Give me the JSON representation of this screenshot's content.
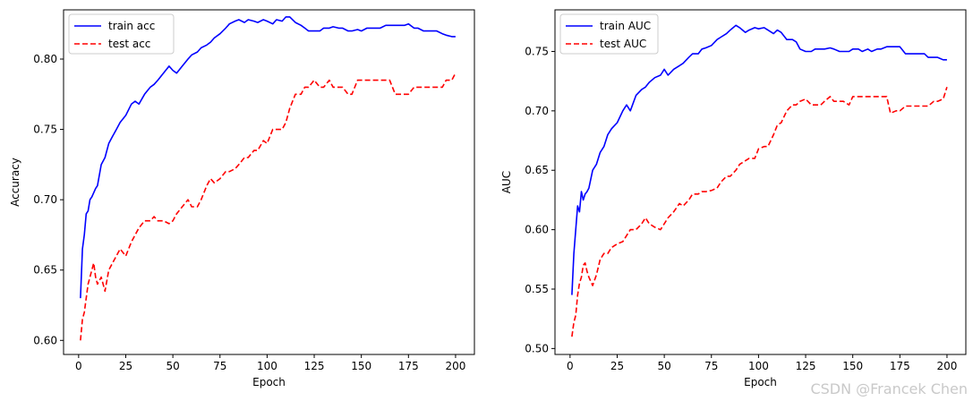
{
  "chart_data": [
    {
      "type": "line",
      "title": "",
      "xlabel": "Epoch",
      "ylabel": "Accuracy",
      "xlim": [
        -8,
        210
      ],
      "ylim": [
        0.59,
        0.835
      ],
      "xticks": [
        0,
        25,
        50,
        75,
        100,
        125,
        150,
        175,
        200
      ],
      "yticks": [
        0.6,
        0.65,
        0.7,
        0.75,
        0.8
      ],
      "legend": "top-left",
      "grid": false,
      "series": [
        {
          "name": "train acc",
          "color": "#0000ff",
          "style": "solid",
          "x": [
            1,
            2,
            3,
            4,
            5,
            6,
            7,
            8,
            9,
            10,
            12,
            14,
            16,
            18,
            20,
            22,
            25,
            28,
            30,
            32,
            35,
            38,
            40,
            42,
            45,
            48,
            50,
            52,
            55,
            58,
            60,
            63,
            65,
            68,
            70,
            72,
            75,
            78,
            80,
            83,
            85,
            88,
            90,
            93,
            95,
            98,
            100,
            103,
            105,
            108,
            110,
            112,
            115,
            118,
            120,
            122,
            125,
            128,
            130,
            133,
            135,
            138,
            140,
            143,
            145,
            148,
            150,
            153,
            155,
            158,
            160,
            163,
            165,
            168,
            170,
            173,
            175,
            178,
            180,
            183,
            185,
            188,
            190,
            193,
            195,
            198,
            200
          ],
          "y": [
            0.63,
            0.665,
            0.675,
            0.69,
            0.692,
            0.7,
            0.702,
            0.705,
            0.708,
            0.71,
            0.725,
            0.73,
            0.74,
            0.745,
            0.75,
            0.755,
            0.76,
            0.768,
            0.77,
            0.768,
            0.775,
            0.78,
            0.782,
            0.785,
            0.79,
            0.795,
            0.792,
            0.79,
            0.795,
            0.8,
            0.803,
            0.805,
            0.808,
            0.81,
            0.812,
            0.815,
            0.818,
            0.822,
            0.825,
            0.827,
            0.828,
            0.826,
            0.828,
            0.827,
            0.826,
            0.828,
            0.827,
            0.825,
            0.828,
            0.827,
            0.83,
            0.83,
            0.826,
            0.824,
            0.822,
            0.82,
            0.82,
            0.82,
            0.822,
            0.822,
            0.823,
            0.822,
            0.822,
            0.82,
            0.82,
            0.821,
            0.82,
            0.822,
            0.822,
            0.822,
            0.822,
            0.824,
            0.824,
            0.824,
            0.824,
            0.824,
            0.825,
            0.822,
            0.822,
            0.82,
            0.82,
            0.82,
            0.82,
            0.818,
            0.817,
            0.816,
            0.816
          ]
        },
        {
          "name": "test acc",
          "color": "#ff0000",
          "style": "dashed",
          "x": [
            1,
            2,
            3,
            4,
            5,
            6,
            7,
            8,
            9,
            10,
            12,
            14,
            16,
            18,
            20,
            22,
            25,
            28,
            30,
            32,
            35,
            38,
            40,
            42,
            45,
            48,
            50,
            52,
            55,
            58,
            60,
            63,
            65,
            68,
            70,
            72,
            75,
            78,
            80,
            83,
            85,
            88,
            90,
            93,
            95,
            98,
            100,
            103,
            105,
            108,
            110,
            112,
            115,
            118,
            120,
            122,
            125,
            128,
            130,
            133,
            135,
            138,
            140,
            143,
            145,
            148,
            150,
            153,
            155,
            158,
            160,
            163,
            165,
            168,
            170,
            173,
            175,
            178,
            180,
            183,
            185,
            188,
            190,
            193,
            195,
            198,
            200
          ],
          "y": [
            0.6,
            0.615,
            0.62,
            0.63,
            0.64,
            0.645,
            0.65,
            0.655,
            0.645,
            0.64,
            0.645,
            0.635,
            0.65,
            0.655,
            0.66,
            0.665,
            0.66,
            0.67,
            0.675,
            0.68,
            0.685,
            0.685,
            0.688,
            0.685,
            0.685,
            0.683,
            0.685,
            0.69,
            0.695,
            0.7,
            0.695,
            0.695,
            0.7,
            0.71,
            0.715,
            0.712,
            0.715,
            0.72,
            0.72,
            0.722,
            0.725,
            0.73,
            0.73,
            0.735,
            0.735,
            0.742,
            0.74,
            0.75,
            0.75,
            0.75,
            0.755,
            0.765,
            0.775,
            0.775,
            0.78,
            0.78,
            0.785,
            0.78,
            0.78,
            0.785,
            0.78,
            0.78,
            0.78,
            0.775,
            0.775,
            0.785,
            0.785,
            0.785,
            0.785,
            0.785,
            0.785,
            0.785,
            0.785,
            0.775,
            0.775,
            0.775,
            0.775,
            0.78,
            0.78,
            0.78,
            0.78,
            0.78,
            0.78,
            0.78,
            0.785,
            0.785,
            0.79
          ]
        }
      ]
    },
    {
      "type": "line",
      "title": "",
      "xlabel": "Epoch",
      "ylabel": "AUC",
      "xlim": [
        -8,
        210
      ],
      "ylim": [
        0.495,
        0.785
      ],
      "xticks": [
        0,
        25,
        50,
        75,
        100,
        125,
        150,
        175,
        200
      ],
      "yticks": [
        0.5,
        0.55,
        0.6,
        0.65,
        0.7,
        0.75
      ],
      "legend": "top-left",
      "grid": false,
      "series": [
        {
          "name": "train AUC",
          "color": "#0000ff",
          "style": "solid",
          "x": [
            1,
            2,
            3,
            4,
            5,
            6,
            7,
            8,
            9,
            10,
            12,
            14,
            16,
            18,
            20,
            22,
            25,
            28,
            30,
            32,
            35,
            38,
            40,
            42,
            45,
            48,
            50,
            52,
            55,
            58,
            60,
            63,
            65,
            68,
            70,
            72,
            75,
            78,
            80,
            83,
            85,
            88,
            90,
            93,
            95,
            98,
            100,
            103,
            105,
            108,
            110,
            112,
            115,
            118,
            120,
            122,
            125,
            128,
            130,
            133,
            135,
            138,
            140,
            143,
            145,
            148,
            150,
            153,
            155,
            158,
            160,
            163,
            165,
            168,
            170,
            173,
            175,
            178,
            180,
            183,
            185,
            188,
            190,
            193,
            195,
            198,
            200
          ],
          "y": [
            0.545,
            0.58,
            0.6,
            0.62,
            0.615,
            0.632,
            0.625,
            0.63,
            0.632,
            0.635,
            0.65,
            0.655,
            0.665,
            0.67,
            0.68,
            0.685,
            0.69,
            0.7,
            0.705,
            0.7,
            0.713,
            0.718,
            0.72,
            0.724,
            0.728,
            0.73,
            0.735,
            0.73,
            0.735,
            0.738,
            0.74,
            0.745,
            0.748,
            0.748,
            0.752,
            0.753,
            0.755,
            0.76,
            0.762,
            0.765,
            0.768,
            0.772,
            0.77,
            0.766,
            0.768,
            0.77,
            0.769,
            0.77,
            0.768,
            0.765,
            0.768,
            0.766,
            0.76,
            0.76,
            0.758,
            0.752,
            0.75,
            0.75,
            0.752,
            0.752,
            0.752,
            0.753,
            0.752,
            0.75,
            0.75,
            0.75,
            0.752,
            0.752,
            0.75,
            0.752,
            0.75,
            0.752,
            0.752,
            0.754,
            0.754,
            0.754,
            0.754,
            0.748,
            0.748,
            0.748,
            0.748,
            0.748,
            0.745,
            0.745,
            0.745,
            0.743,
            0.743
          ]
        },
        {
          "name": "test AUC",
          "color": "#ff0000",
          "style": "dashed",
          "x": [
            1,
            2,
            3,
            4,
            5,
            6,
            7,
            8,
            9,
            10,
            12,
            14,
            16,
            18,
            20,
            22,
            25,
            28,
            30,
            32,
            35,
            38,
            40,
            42,
            45,
            48,
            50,
            52,
            55,
            58,
            60,
            63,
            65,
            68,
            70,
            72,
            75,
            78,
            80,
            83,
            85,
            88,
            90,
            93,
            95,
            98,
            100,
            103,
            105,
            108,
            110,
            112,
            115,
            118,
            120,
            122,
            125,
            128,
            130,
            133,
            135,
            138,
            140,
            143,
            145,
            148,
            150,
            153,
            155,
            158,
            160,
            163,
            165,
            168,
            170,
            173,
            175,
            178,
            180,
            183,
            185,
            188,
            190,
            193,
            195,
            198,
            200
          ],
          "y": [
            0.51,
            0.522,
            0.528,
            0.545,
            0.555,
            0.56,
            0.57,
            0.572,
            0.565,
            0.56,
            0.553,
            0.562,
            0.575,
            0.58,
            0.58,
            0.585,
            0.588,
            0.59,
            0.595,
            0.6,
            0.6,
            0.605,
            0.61,
            0.605,
            0.602,
            0.6,
            0.605,
            0.61,
            0.615,
            0.622,
            0.62,
            0.625,
            0.63,
            0.63,
            0.632,
            0.632,
            0.633,
            0.635,
            0.64,
            0.645,
            0.645,
            0.65,
            0.655,
            0.658,
            0.66,
            0.66,
            0.668,
            0.67,
            0.67,
            0.68,
            0.688,
            0.69,
            0.7,
            0.705,
            0.705,
            0.708,
            0.71,
            0.705,
            0.705,
            0.705,
            0.708,
            0.712,
            0.708,
            0.708,
            0.708,
            0.705,
            0.712,
            0.712,
            0.712,
            0.712,
            0.712,
            0.712,
            0.712,
            0.712,
            0.698,
            0.7,
            0.7,
            0.704,
            0.704,
            0.704,
            0.704,
            0.704,
            0.704,
            0.708,
            0.708,
            0.71,
            0.72
          ]
        }
      ]
    }
  ],
  "watermark": "CSDN @Francek Chen"
}
